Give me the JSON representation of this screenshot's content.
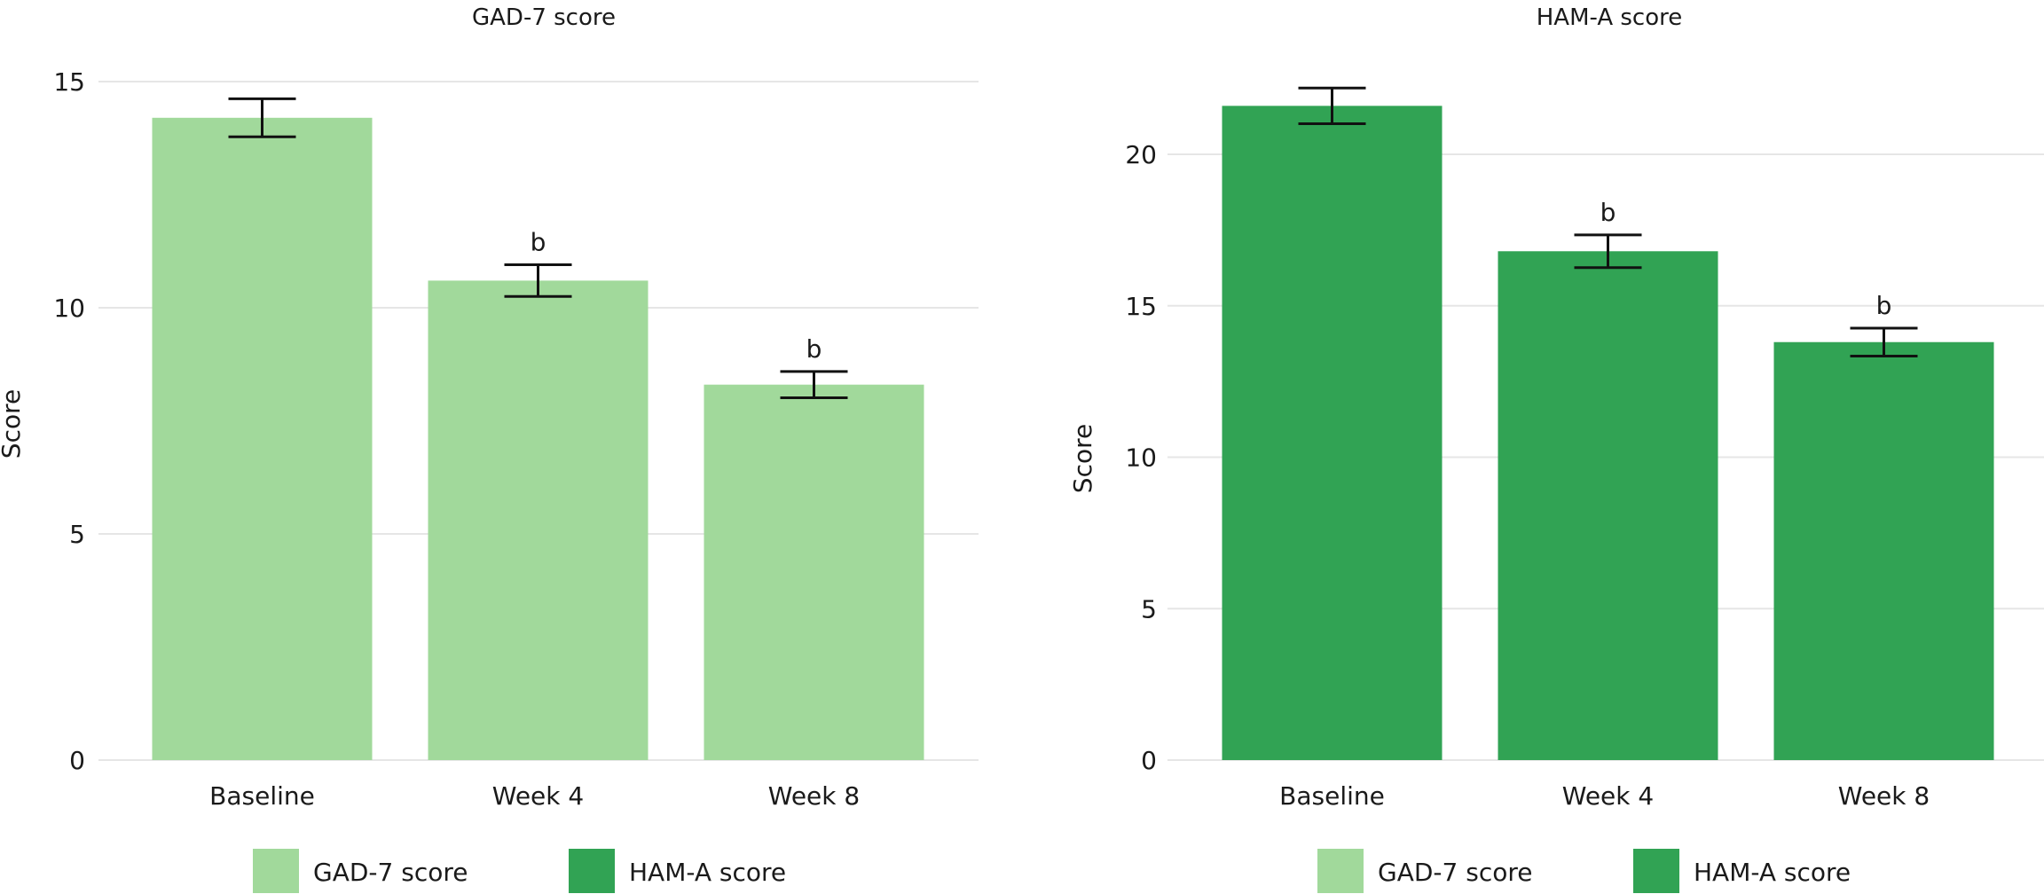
{
  "chart_data": [
    {
      "type": "bar",
      "title": "GAD-7 score",
      "xlabel": "",
      "ylabel": "Score",
      "categories": [
        "Baseline",
        "Week 4",
        "Week 8"
      ],
      "values": [
        14.2,
        10.6,
        8.3
      ],
      "error": [
        0.42,
        0.35,
        0.29
      ],
      "annotations": [
        "",
        "b",
        "b"
      ],
      "yticks": [
        0,
        5,
        10,
        15
      ],
      "ytick_labels": [
        "0",
        "5",
        "10",
        "15"
      ],
      "ylim": [
        0,
        15
      ],
      "color": "#a1d99b",
      "grid": true,
      "legend": {
        "placement": "bottom",
        "items": [
          {
            "label": "GAD-7 score",
            "color": "#a1d99b"
          },
          {
            "label": "HAM-A score",
            "color": "#31a354"
          }
        ]
      }
    },
    {
      "type": "bar",
      "title": "HAM-A score",
      "xlabel": "",
      "ylabel": "Score",
      "categories": [
        "Baseline",
        "Week 4",
        "Week 8"
      ],
      "values": [
        21.6,
        16.8,
        13.8
      ],
      "error": [
        0.59,
        0.54,
        0.46
      ],
      "annotations": [
        "",
        "b",
        "b"
      ],
      "yticks": [
        0,
        5,
        10,
        15,
        20
      ],
      "ytick_labels": [
        "0",
        "5",
        "10",
        "15",
        "20"
      ],
      "ylim": [
        0,
        20
      ],
      "color": "#31a354",
      "grid": true,
      "legend": {
        "placement": "bottom",
        "items": [
          {
            "label": "GAD-7 score",
            "color": "#a1d99b"
          },
          {
            "label": "HAM-A score",
            "color": "#31a354"
          }
        ]
      }
    }
  ]
}
